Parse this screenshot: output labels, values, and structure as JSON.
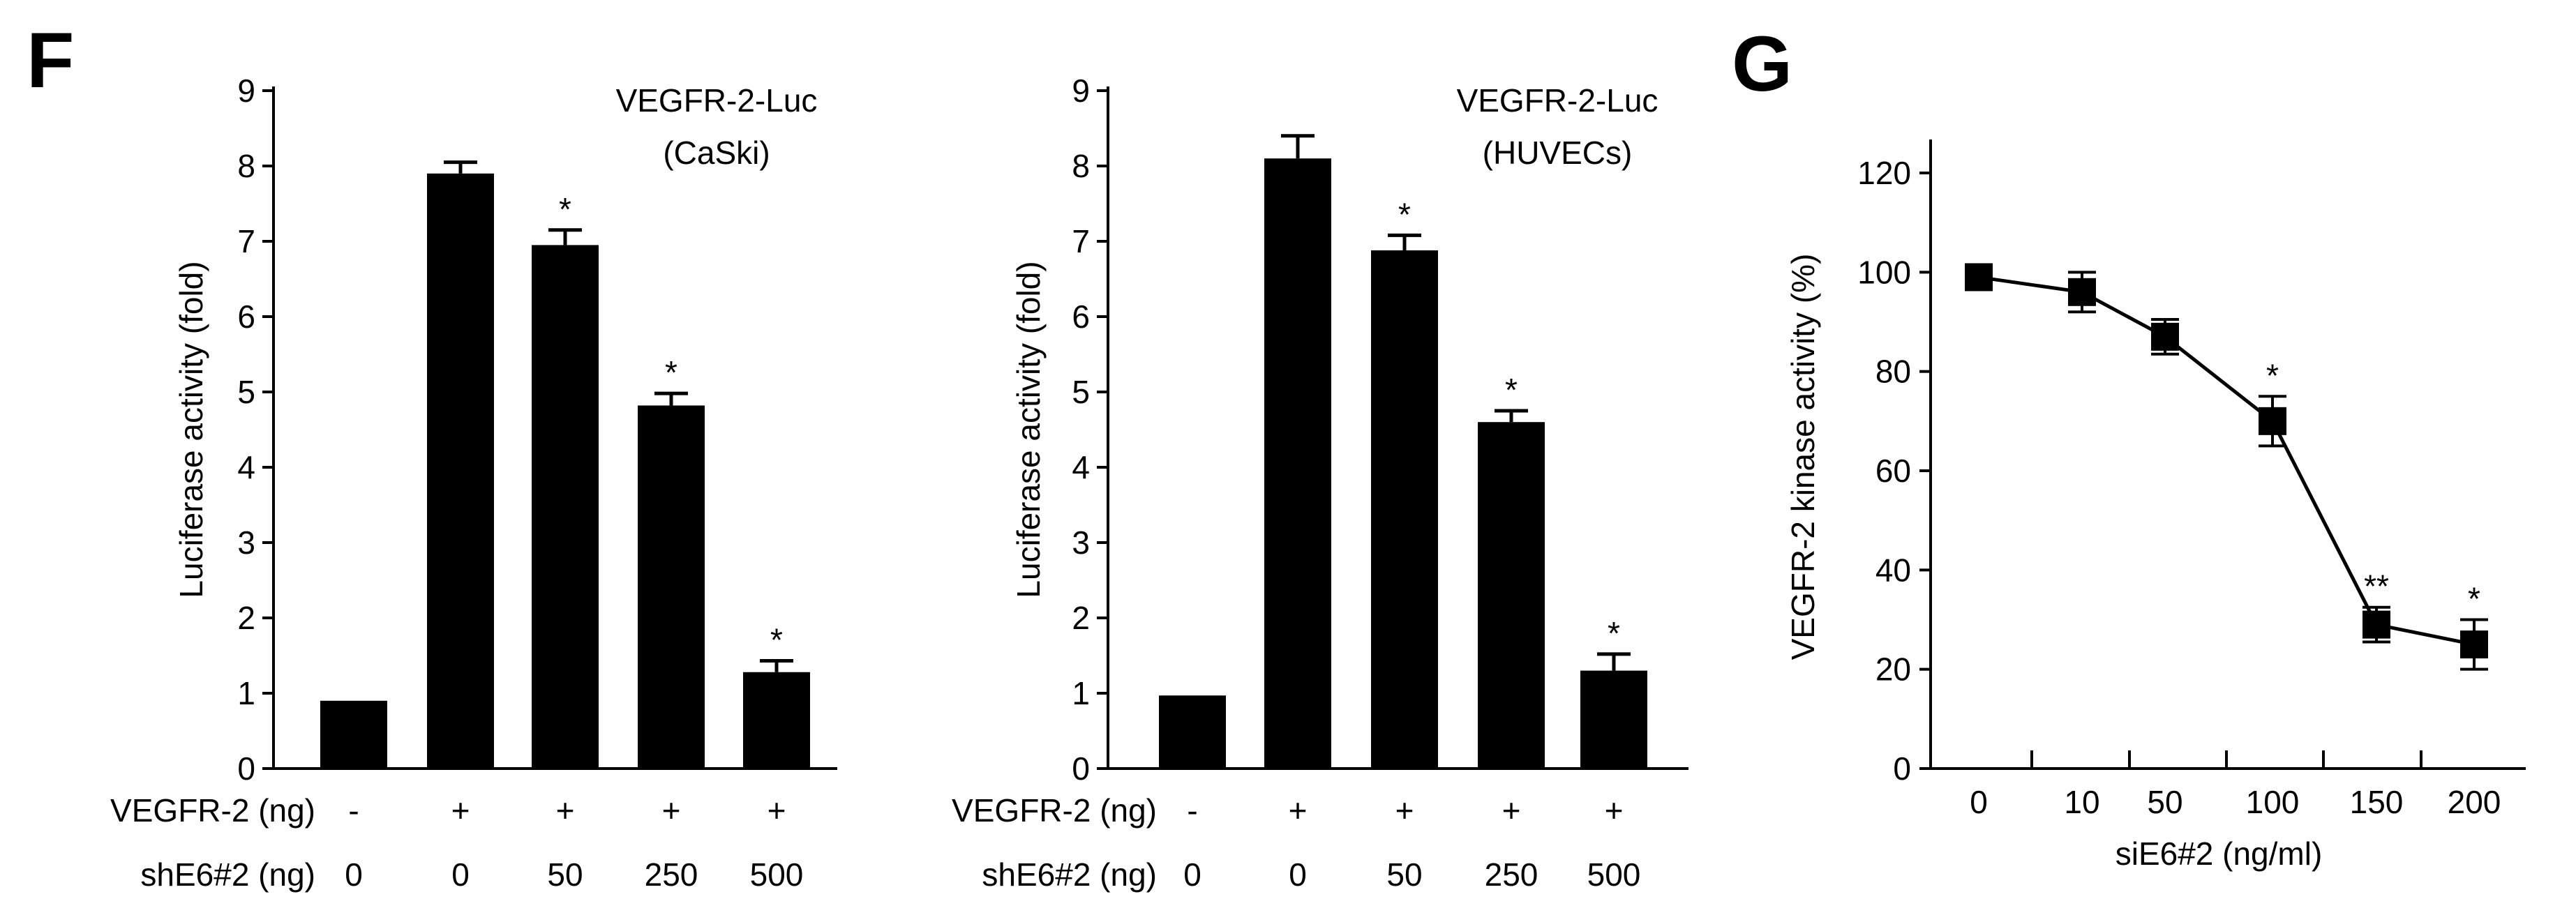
{
  "chart_data": [
    {
      "type": "bar",
      "panel_label": "F",
      "annotation": [
        "VEGFR-2-Luc",
        "(CaSki)"
      ],
      "ylabel": "Luciferase activity (fold)",
      "ylim": [
        0,
        9
      ],
      "yticks": [
        "0",
        "1",
        "2",
        "3",
        "4",
        "5",
        "6",
        "7",
        "8",
        "9"
      ],
      "condition_rows": [
        {
          "label": "VEGFR-2 (ng)",
          "values": [
            "-",
            "+",
            "+",
            "+",
            "+"
          ]
        },
        {
          "label": "shE6#2 (ng)",
          "values": [
            "0",
            "0",
            "50",
            "250",
            "500"
          ]
        }
      ],
      "values": [
        0.9,
        7.9,
        6.95,
        4.82,
        1.28
      ],
      "errors": [
        0,
        0.15,
        0.2,
        0.16,
        0.15
      ],
      "significance": [
        "",
        "",
        "*",
        "*",
        "*"
      ],
      "color": "#000000"
    },
    {
      "type": "bar",
      "panel_label": "",
      "annotation": [
        "VEGFR-2-Luc",
        "(HUVECs)"
      ],
      "ylabel": "Luciferase activity (fold)",
      "ylim": [
        0,
        9
      ],
      "yticks": [
        "0",
        "1",
        "2",
        "3",
        "4",
        "5",
        "6",
        "7",
        "8",
        "9"
      ],
      "condition_rows": [
        {
          "label": "VEGFR-2 (ng)",
          "values": [
            "-",
            "+",
            "+",
            "+",
            "+"
          ]
        },
        {
          "label": "shE6#2 (ng)",
          "values": [
            "0",
            "0",
            "50",
            "250",
            "500"
          ]
        }
      ],
      "values": [
        0.97,
        8.1,
        6.88,
        4.6,
        1.3
      ],
      "errors": [
        0,
        0.3,
        0.2,
        0.15,
        0.22
      ],
      "significance": [
        "",
        "",
        "*",
        "*",
        "*"
      ],
      "color": "#000000"
    },
    {
      "type": "line",
      "panel_label": "G",
      "ylabel": "VEGFR-2 kinase activity (%)",
      "xlabel": "siE6#2 (ng/ml)",
      "ylim": [
        0,
        120
      ],
      "yticks": [
        "0",
        "20",
        "40",
        "60",
        "80",
        "100",
        "120"
      ],
      "x": [
        "0",
        "10",
        "50",
        "100",
        "150",
        "200"
      ],
      "values": [
        99,
        96,
        87,
        70,
        29,
        25
      ],
      "errors": [
        2,
        4,
        3.5,
        5,
        3.5,
        5
      ],
      "significance": [
        "",
        "",
        "",
        "*",
        "**",
        "*"
      ],
      "marker": "square",
      "color": "#000000"
    }
  ]
}
